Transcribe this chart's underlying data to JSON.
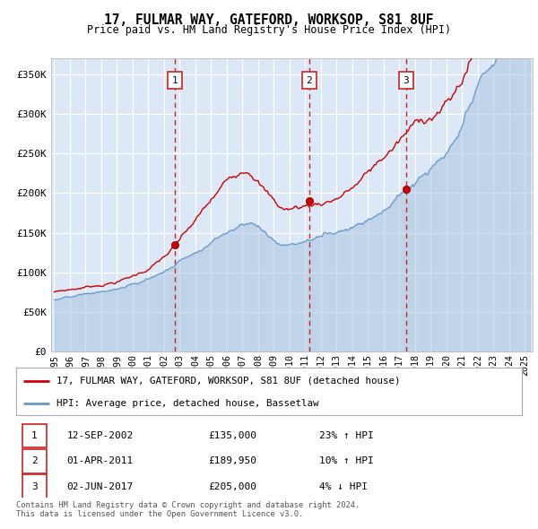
{
  "title": "17, FULMAR WAY, GATEFORD, WORKSOP, S81 8UF",
  "subtitle": "Price paid vs. HM Land Registry's House Price Index (HPI)",
  "legend_line1": "17, FULMAR WAY, GATEFORD, WORKSOP, S81 8UF (detached house)",
  "legend_line2": "HPI: Average price, detached house, Bassetlaw",
  "footer1": "Contains HM Land Registry data © Crown copyright and database right 2024.",
  "footer2": "This data is licensed under the Open Government Licence v3.0.",
  "sales": [
    {
      "num": 1,
      "date": "12-SEP-2002",
      "price": 135000,
      "pct": "23%",
      "dir": "↑"
    },
    {
      "num": 2,
      "date": "01-APR-2011",
      "price": 189950,
      "pct": "10%",
      "dir": "↑"
    },
    {
      "num": 3,
      "date": "02-JUN-2017",
      "price": 205000,
      "pct": "4%",
      "dir": "↓"
    }
  ],
  "sale_dates_decimal": [
    2002.7,
    2011.25,
    2017.42
  ],
  "sale_prices": [
    135000,
    189950,
    205000
  ],
  "red_line_color": "#cc0000",
  "blue_line_color": "#6699cc",
  "blue_fill_color": "#aac4e0",
  "plot_bg": "#dce8f5",
  "grid_color": "#ffffff",
  "vline_color": "#cc2222",
  "ylim": [
    0,
    370000
  ],
  "yticks": [
    0,
    50000,
    100000,
    150000,
    200000,
    250000,
    300000,
    350000
  ],
  "xlim_start": 1994.8,
  "xlim_end": 2025.5,
  "xticks": [
    1995,
    1996,
    1997,
    1998,
    1999,
    2000,
    2001,
    2002,
    2003,
    2004,
    2005,
    2006,
    2007,
    2008,
    2009,
    2010,
    2011,
    2012,
    2013,
    2014,
    2015,
    2016,
    2017,
    2018,
    2019,
    2020,
    2021,
    2022,
    2023,
    2024,
    2025
  ]
}
